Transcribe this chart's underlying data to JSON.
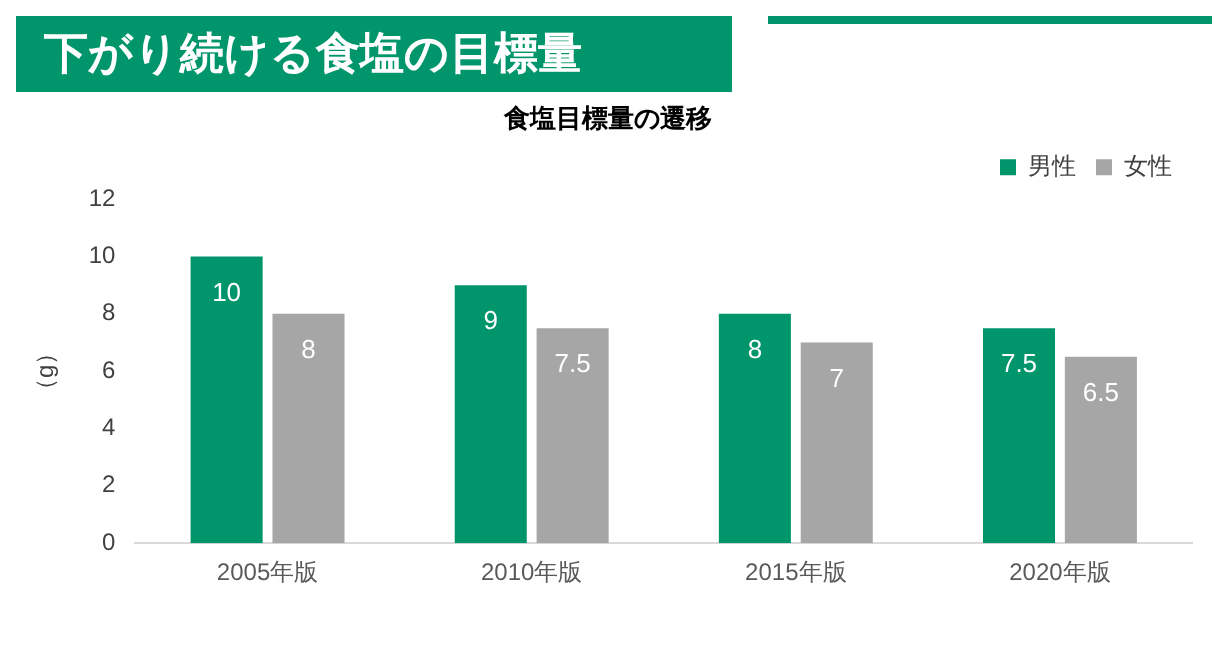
{
  "chart_data": {
    "type": "bar",
    "title": "下がり続ける食塩の目標量",
    "subtitle": "食塩目標量の遷移",
    "ylabel": "（g）",
    "categories": [
      "2005年版",
      "2010年版",
      "2015年版",
      "2020年版"
    ],
    "series": [
      {
        "name": "男性",
        "color": "#00956a",
        "values": [
          10,
          9,
          8,
          7.5
        ]
      },
      {
        "name": "女性",
        "color": "#a6a6a6",
        "values": [
          8,
          7.5,
          7,
          6.5
        ]
      }
    ],
    "ylim": [
      0,
      12
    ],
    "yticks": [
      0,
      2,
      4,
      6,
      8,
      10,
      12
    ],
    "grid": false,
    "legend": "top right",
    "data_labels": true
  }
}
